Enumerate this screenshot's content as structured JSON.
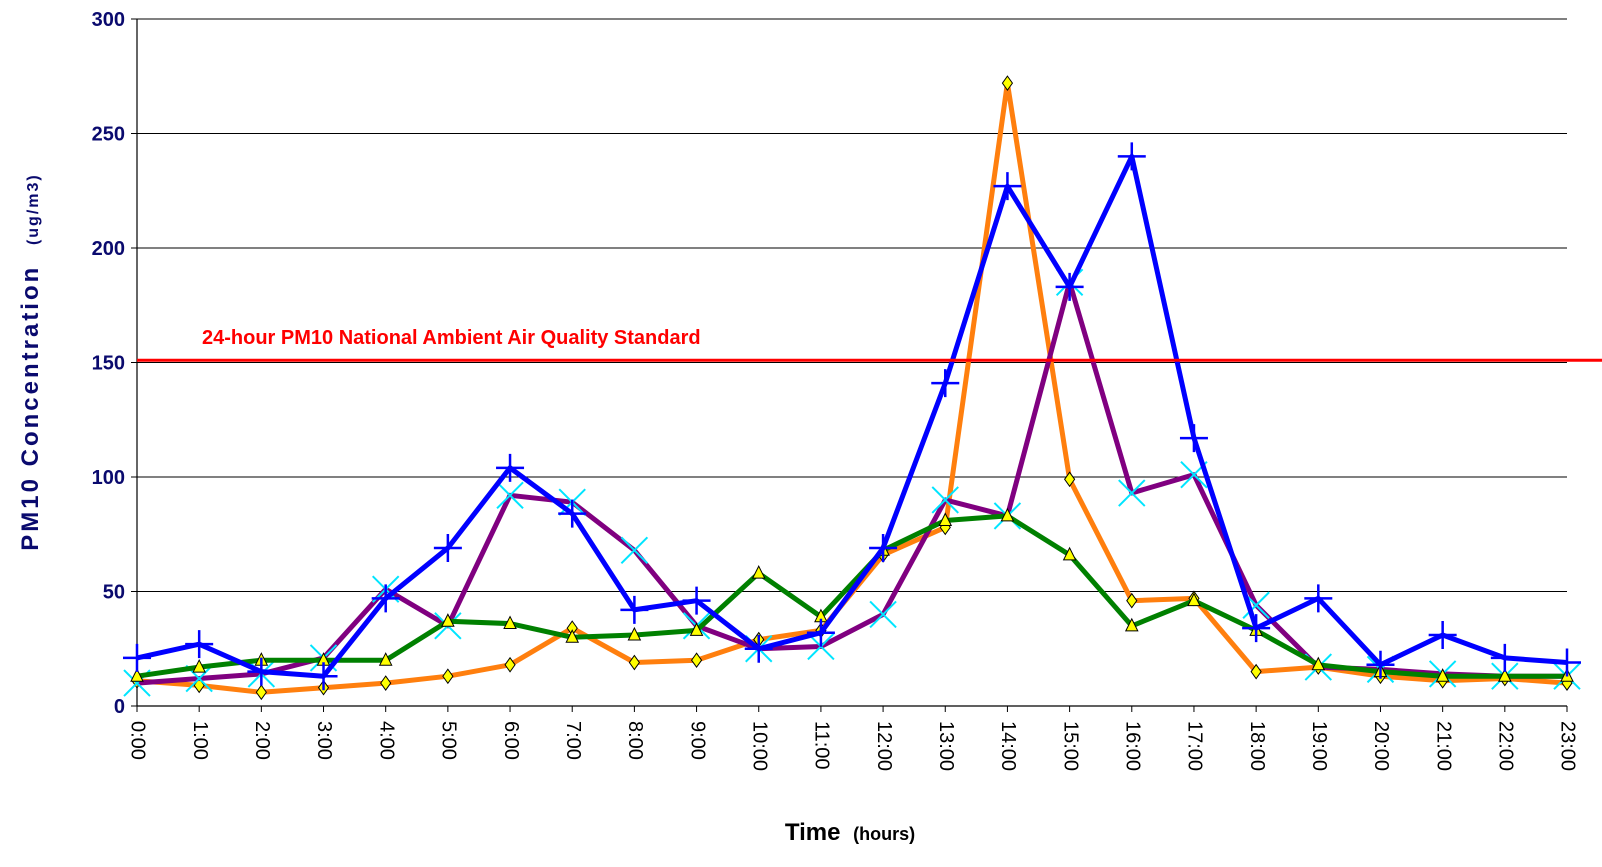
{
  "chart_data": {
    "type": "line",
    "xlabel": "Time",
    "xlabel_unit": "(hours)",
    "ylabel": "PM10 Concentration",
    "ylabel_unit": "(ug/m3)",
    "ylim": [
      0,
      300
    ],
    "yticks": [
      0,
      50,
      100,
      150,
      200,
      250,
      300
    ],
    "grid": true,
    "categories": [
      "0:00",
      "1:00",
      "2:00",
      "3:00",
      "4:00",
      "5:00",
      "6:00",
      "7:00",
      "8:00",
      "9:00",
      "10:00",
      "11:00",
      "12:00",
      "13:00",
      "14:00",
      "15:00",
      "16:00",
      "17:00",
      "18:00",
      "19:00",
      "20:00",
      "21:00",
      "22:00",
      "23:00"
    ],
    "reference_line": {
      "value": 151,
      "label": "24-hour PM10 National Ambient Air Quality Standard",
      "color": "#ff0000"
    },
    "series": [
      {
        "color": "#ff7f0e",
        "marker": "diamond",
        "marker_color": "#ffff00",
        "values": [
          11,
          9,
          6,
          8,
          10,
          13,
          18,
          34,
          19,
          20,
          29,
          33,
          66,
          78,
          272,
          99,
          46,
          47,
          15,
          17,
          13,
          11,
          12,
          10
        ]
      },
      {
        "color": "#800080",
        "marker": "x",
        "marker_color": "#00e5ff",
        "values": [
          10,
          12,
          14,
          21,
          51,
          35,
          92,
          89,
          68,
          35,
          25,
          26,
          40,
          90,
          83,
          185,
          93,
          101,
          44,
          17,
          16,
          14,
          13,
          13
        ]
      },
      {
        "color": "#008000",
        "marker": "triangle",
        "marker_color": "#ffff00",
        "values": [
          13,
          17,
          20,
          20,
          20,
          37,
          36,
          30,
          31,
          33,
          58,
          39,
          68,
          81,
          83,
          66,
          35,
          46,
          33,
          18,
          15,
          13,
          13,
          13
        ]
      },
      {
        "color": "#0000ff",
        "marker": "plus",
        "marker_color": "#0000ff",
        "values": [
          21,
          27,
          15,
          13,
          47,
          69,
          104,
          84,
          42,
          46,
          25,
          32,
          69,
          141,
          227,
          183,
          240,
          117,
          34,
          47,
          18,
          31,
          21,
          19
        ]
      }
    ]
  }
}
